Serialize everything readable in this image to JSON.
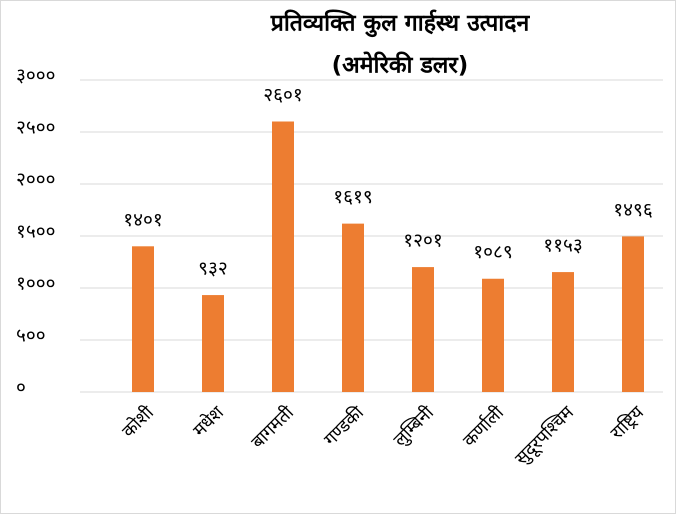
{
  "chart_data": {
    "type": "bar",
    "title": "प्रतिव्यक्ति कुल गार्हस्थ उत्पादन",
    "subtitle": "(अमेरिकी डलर)",
    "categories": [
      "कोशी",
      "मधेश",
      "बागमती",
      "गण्डकी",
      "लुम्बिनी",
      "कर्णाली",
      "सुदूरपश्चिम",
      "राष्ट्रिय"
    ],
    "values": [
      1401,
      932,
      2601,
      1619,
      1201,
      1089,
      1153,
      1496
    ],
    "value_labels": [
      "१४०१",
      "९३२",
      "२६०१",
      "१६१९",
      "१२०१",
      "१०८९",
      "११५३",
      "१४९६"
    ],
    "color": "#ed7d31",
    "ylim": [
      0,
      3000
    ],
    "yticks": [
      {
        "value": 0,
        "label": "०"
      },
      {
        "value": 500,
        "label": "५००"
      },
      {
        "value": 1000,
        "label": "१०००"
      },
      {
        "value": 1500,
        "label": "१५००"
      },
      {
        "value": 2000,
        "label": "२०००"
      },
      {
        "value": 2500,
        "label": "२५००"
      },
      {
        "value": 3000,
        "label": "३०००"
      }
    ],
    "grid": true
  }
}
